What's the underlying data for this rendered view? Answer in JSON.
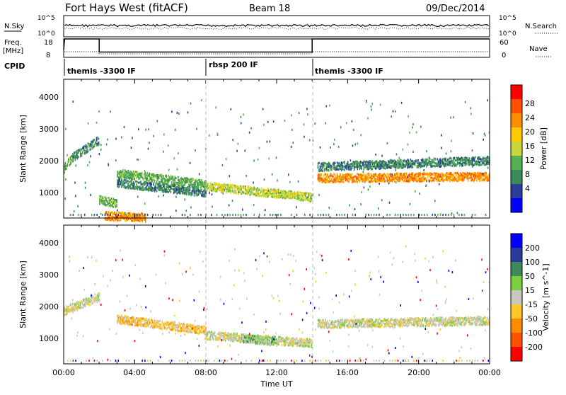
{
  "header": {
    "station": "Fort Hays West (fitACF)",
    "beam": "Beam 18",
    "date": "09/Dec/2014"
  },
  "noise_panel": {
    "left_label": "N.Sky",
    "left_ticks": [
      "10^5",
      "10^0"
    ],
    "right_label": "N.Search",
    "right_ticks": [
      "10^5",
      "10^0"
    ]
  },
  "freq_panel": {
    "left_label_1": "Freq.",
    "left_label_2": "[MHz]",
    "left_ticks": [
      "18",
      "8"
    ],
    "right_ticks": [
      "60",
      "0"
    ],
    "right_label": "Nave",
    "cpid_label": "CPID"
  },
  "cpid_segments": [
    {
      "name": "themis -3300 IF",
      "start_hour": 0
    },
    {
      "name": "rbsp 200 IF",
      "start_hour": 8
    },
    {
      "name": "themis -3300 IF",
      "start_hour": 14
    }
  ],
  "colors": {
    "power_scale": [
      "#0000ff",
      "#2d3d9c",
      "#3c8c5b",
      "#54b050",
      "#c8d83c",
      "#ffc800",
      "#ff8c00",
      "#ff5000",
      "#ff0000"
    ],
    "velocity_scale": [
      "#0000ff",
      "#2a3a9a",
      "#3d8a58",
      "#7ccc44",
      "#c8c8c0",
      "#ffc828",
      "#ff8c00",
      "#ff5000",
      "#ff0000"
    ]
  },
  "chart_data": [
    {
      "type": "heatmap",
      "name": "power",
      "xlabel": "",
      "ylabel": "Slant Range [km]",
      "xlim": [
        0,
        24
      ],
      "ylim": [
        180,
        4500
      ],
      "yticks": [
        "1000",
        "2000",
        "3000",
        "4000"
      ],
      "colorbar": {
        "label": "Power [dB]",
        "ticks": [
          "4",
          "8",
          "12",
          "16",
          "20",
          "24",
          "28"
        ]
      },
      "bands": [
        {
          "x": [
            0.0,
            0.5
          ],
          "y_start": 1750,
          "y_end": 2100,
          "level": 3
        },
        {
          "x": [
            0.5,
            2.0
          ],
          "y_start": 2100,
          "y_end": 2650,
          "level": 2
        },
        {
          "x": [
            2.0,
            3.0
          ],
          "y_start": 780,
          "y_end": 650,
          "level": 3
        },
        {
          "x": [
            2.3,
            4.6
          ],
          "y_start": 280,
          "y_end": 220,
          "level": 6
        },
        {
          "x": [
            3.0,
            8.0
          ],
          "y_start": 1600,
          "y_end": 1250,
          "level": 3
        },
        {
          "x": [
            3.0,
            8.0
          ],
          "y_start": 1300,
          "y_end": 1000,
          "level": 2
        },
        {
          "x": [
            8.0,
            14.0
          ],
          "y_start": 1200,
          "y_end": 850,
          "level": 4
        },
        {
          "x": [
            14.3,
            24.0
          ],
          "y_start": 1450,
          "y_end": 1500,
          "level": 6
        },
        {
          "x": [
            14.3,
            24.0
          ],
          "y_start": 1800,
          "y_end": 2000,
          "level": 2
        }
      ]
    },
    {
      "type": "heatmap",
      "name": "velocity",
      "xlabel": "Time UT",
      "ylabel": "Slant Range [km]",
      "xlim": [
        0,
        24
      ],
      "ylim": [
        180,
        4500
      ],
      "xticks": [
        "00:00",
        "04:00",
        "08:00",
        "12:00",
        "16:00",
        "20:00",
        "00:00"
      ],
      "yticks": [
        "1000",
        "2000",
        "3000",
        "4000"
      ],
      "colorbar": {
        "label": "Velocity [m s^-1]",
        "ticks": [
          "200",
          "100",
          "50",
          "15",
          "-15",
          "-50",
          "-100",
          "-200"
        ]
      },
      "bands": [
        {
          "x": [
            0.0,
            2.0
          ],
          "y_start": 1850,
          "y_end": 2300,
          "level": 4
        },
        {
          "x": [
            3.0,
            8.0
          ],
          "y_start": 1600,
          "y_end": 1250,
          "level": 5
        },
        {
          "x": [
            8.0,
            14.0
          ],
          "y_start": 1100,
          "y_end": 850,
          "level": 4
        },
        {
          "x": [
            10.0,
            12.0
          ],
          "y_start": 1000,
          "y_end": 900,
          "level": 3
        },
        {
          "x": [
            14.3,
            24.0
          ],
          "y_start": 1450,
          "y_end": 1550,
          "level": 4
        }
      ]
    }
  ],
  "time_axis": {
    "label": "Time UT",
    "ticks": [
      "00:00",
      "04:00",
      "08:00",
      "12:00",
      "16:00",
      "20:00",
      "00:00"
    ]
  }
}
